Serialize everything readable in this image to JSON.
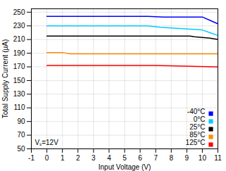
{
  "chart_data": {
    "type": "line",
    "title": "",
    "xlabel": "Input Voltage (V)",
    "ylabel": "Total Supply Current (μA)",
    "annotation": "Vₛ=12V",
    "xlim": [
      -1,
      11
    ],
    "ylim": [
      50,
      255
    ],
    "xticks": [
      -1,
      0,
      1,
      2,
      3,
      4,
      5,
      6,
      7,
      8,
      9,
      10,
      11
    ],
    "yticks": [
      50,
      70,
      90,
      110,
      130,
      150,
      170,
      190,
      210,
      230,
      250
    ],
    "grid": true,
    "legend": "lower right",
    "series": [
      {
        "name": "-40°C",
        "color": "#0000FF",
        "x": [
          0.0,
          6.5,
          7.5,
          10.0,
          10.5,
          11.0
        ],
        "values": [
          244,
          244,
          243,
          243,
          238,
          233
        ]
      },
      {
        "name": "0°C",
        "color": "#00CCFF",
        "x": [
          0.0,
          4.5,
          6.5,
          7.3,
          10.0,
          10.5,
          11.0
        ],
        "values": [
          230,
          230,
          230,
          228,
          224,
          220,
          216
        ]
      },
      {
        "name": "25°C",
        "color": "#000000",
        "x": [
          0.0,
          9.2,
          9.5,
          10.0,
          10.5,
          11.0
        ],
        "values": [
          215,
          215,
          214,
          213,
          212,
          210
        ]
      },
      {
        "name": "85°C",
        "color": "#FF8C00",
        "x": [
          0.0,
          1.0,
          1.5,
          7.0,
          10.8,
          11.0
        ],
        "values": [
          191,
          191,
          189,
          189,
          189,
          189
        ]
      },
      {
        "name": "125°C",
        "color": "#FF0000",
        "x": [
          0.0,
          7.0,
          10.8,
          11.0
        ],
        "values": [
          172,
          172,
          170,
          170
        ]
      }
    ]
  }
}
